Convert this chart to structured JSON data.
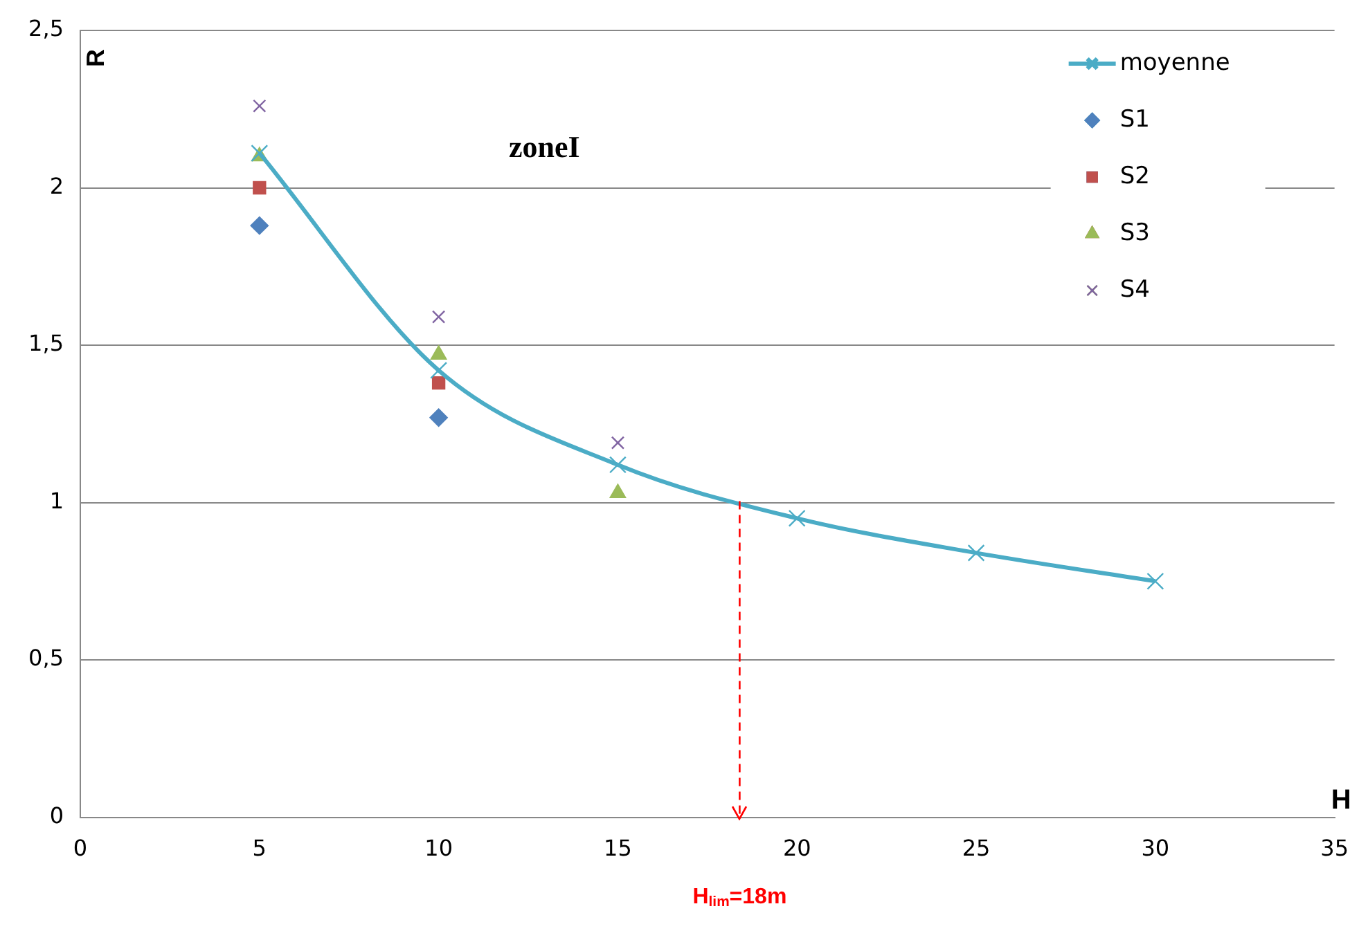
{
  "chart_data": {
    "type": "scatter",
    "xlabel": "H",
    "ylabel": "R",
    "x": [
      5,
      10,
      15,
      20,
      25,
      30
    ],
    "series": [
      {
        "name": "moyenne",
        "type": "line",
        "color": "#4bacc6",
        "marker": "cross",
        "values": [
          2.11,
          1.42,
          1.12,
          0.95,
          0.84,
          0.75
        ]
      },
      {
        "name": "S1",
        "color": "#4f81bd",
        "marker": "diamond",
        "x": [
          5,
          10
        ],
        "values": [
          1.88,
          1.27
        ]
      },
      {
        "name": "S2",
        "color": "#c0504d",
        "marker": "square",
        "x": [
          5,
          10
        ],
        "values": [
          2.0,
          1.38
        ]
      },
      {
        "name": "S3",
        "color": "#9bbb59",
        "marker": "triangle",
        "x": [
          5,
          10,
          15
        ],
        "values": [
          2.1,
          1.47,
          1.03
        ]
      },
      {
        "name": "S4",
        "color": "#8064a2",
        "marker": "cross",
        "x": [
          5,
          10,
          15
        ],
        "values": [
          2.26,
          1.59,
          1.19
        ]
      }
    ],
    "xlim": [
      0,
      35
    ],
    "xticks": [
      0,
      5,
      10,
      15,
      20,
      25,
      30,
      35
    ],
    "ylim": [
      0,
      2.5
    ],
    "yticks": [
      {
        "value": 0,
        "label": "0"
      },
      {
        "value": 0.5,
        "label": "0,5"
      },
      {
        "value": 1,
        "label": "1"
      },
      {
        "value": 1.5,
        "label": "1,5"
      },
      {
        "value": 2,
        "label": "2"
      },
      {
        "value": 2.5,
        "label": "2,5"
      }
    ],
    "ref_lines": [
      {
        "axis": "x",
        "value": 18.4,
        "label": "H$_{lim}$=18m",
        "color": "#ff0000",
        "line_style": "dashed"
      }
    ],
    "annotations": [
      "zoneI"
    ],
    "grid": "y",
    "legend": "top right"
  }
}
